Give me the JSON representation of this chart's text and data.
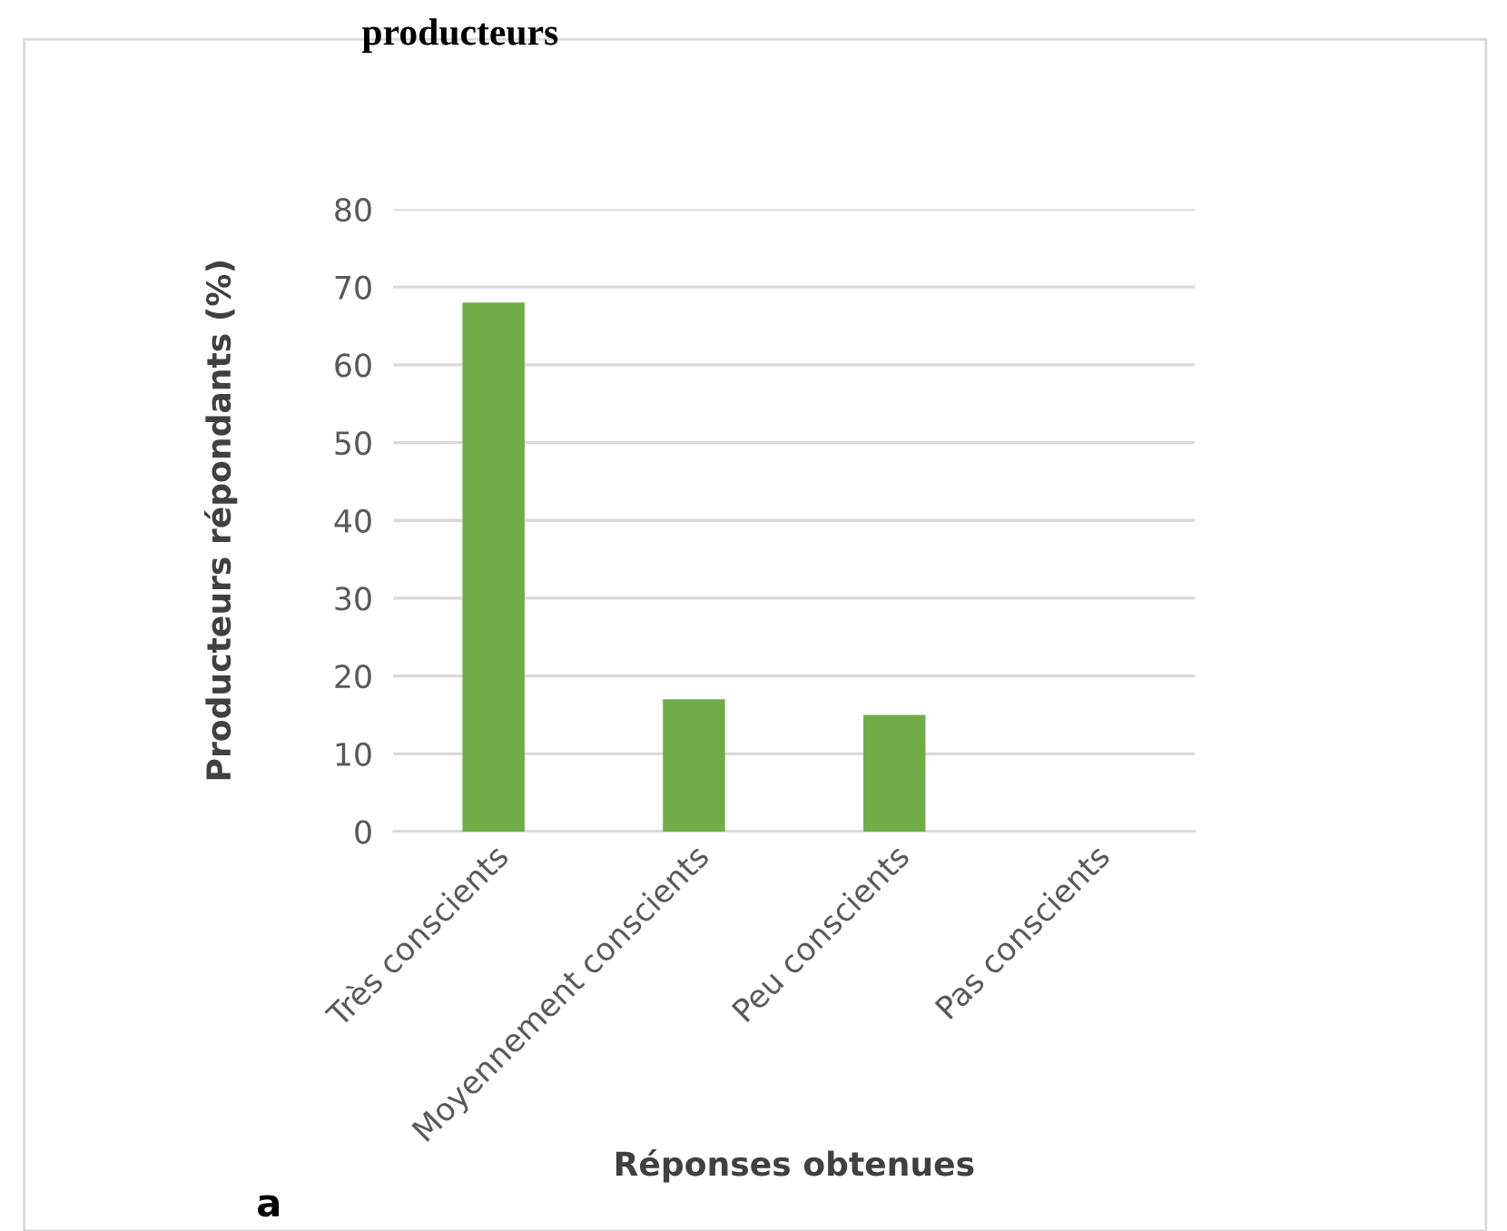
{
  "chart_data": {
    "type": "bar",
    "title": "producteurs",
    "xlabel": "Réponses obtenues",
    "ylabel": "Producteurs répondants (%)",
    "categories": [
      "Très conscients",
      "Moyennement conscients",
      "Peu conscients",
      "Pas conscients"
    ],
    "values": [
      68,
      17,
      15,
      0
    ],
    "color": "#70ad47",
    "ylim": [
      0,
      80
    ],
    "yticks": [
      0,
      10,
      20,
      30,
      40,
      50,
      60,
      70,
      80
    ],
    "grid": "y",
    "legend": false,
    "annotations": [
      "a"
    ]
  }
}
